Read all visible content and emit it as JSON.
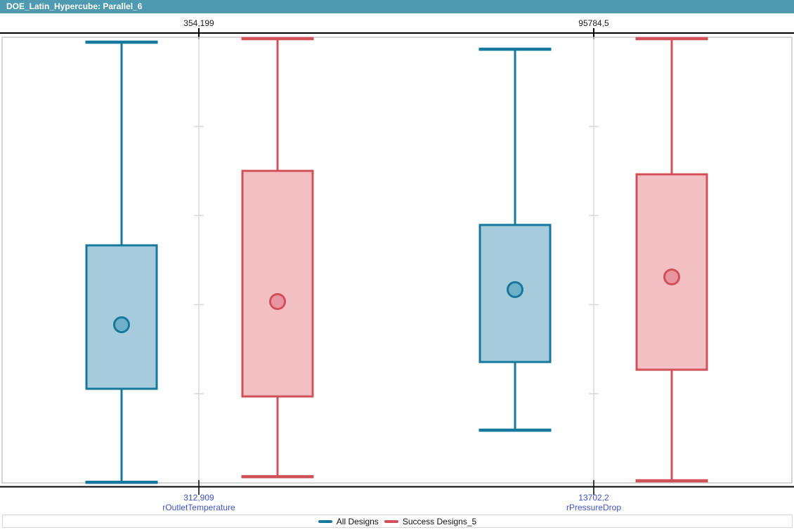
{
  "window": {
    "title": "DOE_Latin_Hypercube: Parallel_6"
  },
  "chart_data": {
    "type": "boxplot",
    "orientation": "vertical",
    "legend_position": "bottom",
    "grid": false,
    "colors": {
      "titlebar": "#4E9AB0",
      "axis_line": "#000000",
      "frame": "#ABABAB",
      "variable_axis": "#D8D8D8",
      "min_label_text": "#3D55CC"
    },
    "series": [
      {
        "name": "All Designs",
        "color": "#17789D",
        "fill": "#A6CBDC",
        "mean_fill": "#70AFC8"
      },
      {
        "name": "Success Designs_5",
        "color": "#D25159",
        "fill": "#F2BFC3",
        "mean_fill": "#E795A0"
      }
    ],
    "variables": [
      {
        "name": "rOutletTemperature",
        "axis_max_label": "354,199",
        "axis_min_label": "312,909",
        "min": 312.909,
        "max": 354.199,
        "boxes": [
          {
            "series": "All Designs",
            "whisker_low": 312.97,
            "q1": 321.63,
            "mean": 327.56,
            "q3": 334.92,
            "whisker_high": 353.74
          },
          {
            "series": "Success Designs_5",
            "whisker_low": 313.49,
            "q1": 320.92,
            "mean": 329.71,
            "q3": 341.82,
            "whisker_high": 354.07
          }
        ]
      },
      {
        "name": "rPressureDrop",
        "axis_max_label": "95784,5",
        "axis_min_label": "13702,2",
        "min": 13702.2,
        "max": 95784.5,
        "boxes": [
          {
            "series": "All Designs",
            "whisker_low": 23412,
            "q1": 35970,
            "mean": 49305,
            "q3": 61216,
            "whisker_high": 93583
          },
          {
            "series": "Success Designs_5",
            "whisker_low": 14091,
            "q1": 34546,
            "mean": 51636,
            "q3": 70538,
            "whisker_high": 95526
          }
        ]
      }
    ]
  }
}
